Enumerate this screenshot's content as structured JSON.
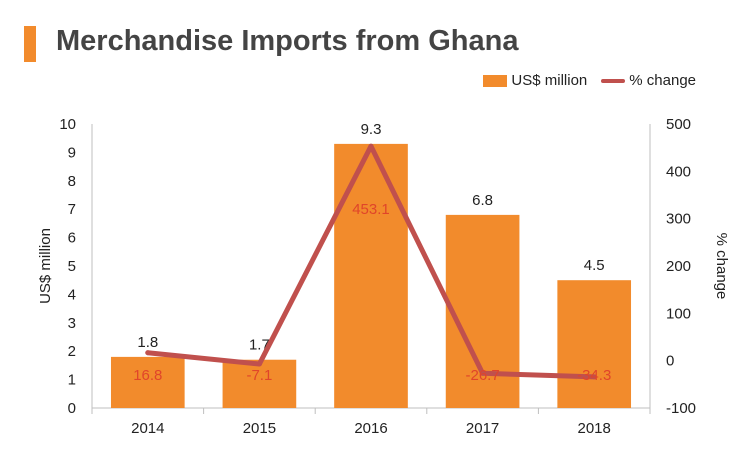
{
  "title": "Merchandise Imports from Ghana",
  "chart_data": {
    "type": "bar",
    "categories": [
      "2014",
      "2015",
      "2016",
      "2017",
      "2018"
    ],
    "series": [
      {
        "name": "US$ million",
        "type": "bar",
        "axis": "left",
        "color": "#f28b2c",
        "values": [
          1.8,
          1.7,
          9.3,
          6.8,
          4.5
        ],
        "labels": [
          "1.8",
          "1.7",
          "9.3",
          "6.8",
          "4.5"
        ]
      },
      {
        "name": "% change",
        "type": "line",
        "axis": "right",
        "color": "#c0504d",
        "values": [
          16.8,
          -7.1,
          453.1,
          -26.7,
          -34.3
        ],
        "labels": [
          "16.8",
          "-7.1",
          "453.1",
          "-26.7",
          "-34.3"
        ]
      }
    ],
    "ylabel": "US$ million",
    "y2label": "% change",
    "ylim": [
      0,
      10
    ],
    "y2lim": [
      -100,
      500
    ],
    "yticks": [
      "0",
      "1",
      "2",
      "3",
      "4",
      "5",
      "6",
      "7",
      "8",
      "9",
      "10"
    ],
    "y2ticks": [
      "-100",
      "0",
      "100",
      "200",
      "300",
      "400",
      "500"
    ],
    "grid": false,
    "legend_position": "top-right"
  }
}
